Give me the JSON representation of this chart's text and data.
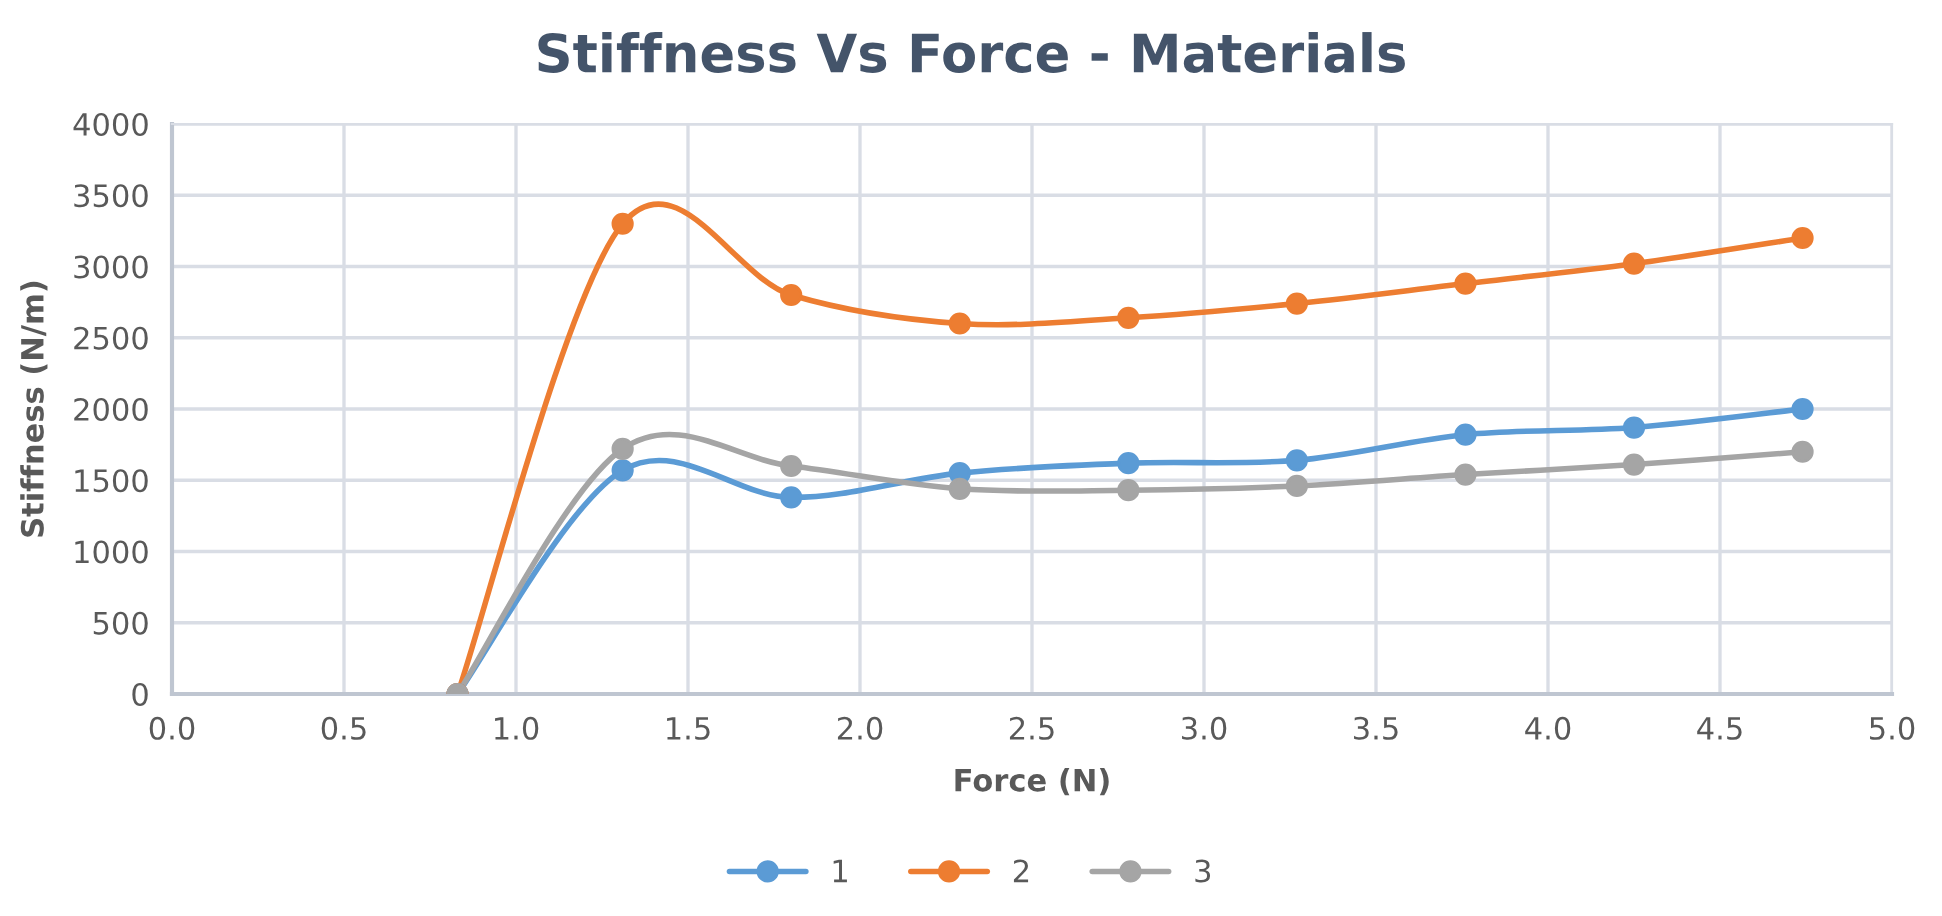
{
  "chart_data": {
    "type": "line",
    "title": "Stiffness Vs Force - Materials",
    "xlabel": "Force (N)",
    "ylabel": "Stiffness (N/m)",
    "x": [
      0.83,
      1.31,
      1.8,
      2.29,
      2.78,
      3.27,
      3.76,
      4.25,
      4.74
    ],
    "series": [
      {
        "name": "1",
        "color": "#5b9bd5",
        "values": [
          0,
          1570,
          1380,
          1550,
          1620,
          1640,
          1820,
          1870,
          2000
        ]
      },
      {
        "name": "2",
        "color": "#ed7d31",
        "values": [
          0,
          3300,
          2800,
          2600,
          2640,
          2740,
          2880,
          3020,
          3200
        ]
      },
      {
        "name": "3",
        "color": "#a5a5a5",
        "values": [
          0,
          1720,
          1600,
          1440,
          1430,
          1460,
          1540,
          1610,
          1700
        ]
      }
    ],
    "xlim": [
      0,
      5
    ],
    "xticks": [
      {
        "value": 0,
        "label": "0.0"
      },
      0.5,
      {
        "value": 1,
        "label": "1.0"
      },
      1.5,
      {
        "value": 2,
        "label": "2.0"
      },
      2.5,
      {
        "value": 3,
        "label": "3.0"
      },
      3.5,
      {
        "value": 4,
        "label": "4.0"
      },
      4.5,
      {
        "value": 5,
        "label": "5.0"
      }
    ],
    "ylim": [
      0,
      4000
    ],
    "yticks": [
      0,
      500,
      1000,
      1500,
      2000,
      2500,
      3000,
      3500,
      4000
    ],
    "grid": true,
    "legend": "bottom",
    "marker": "circle",
    "line_style": "solid"
  }
}
